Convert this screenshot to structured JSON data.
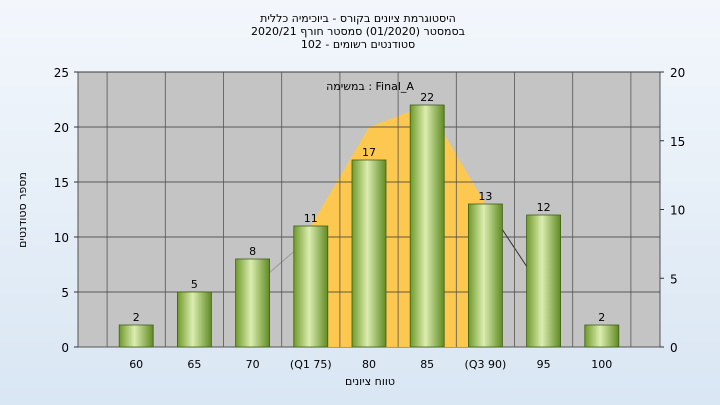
{
  "chart_data": {
    "type": "bar",
    "title": "היסטוגרמת ציונים בקורס - ביוכימיה כללית",
    "subtitle": "בסמסטר  (01/2020)  סמסטר חורף  2020/21",
    "subtitle2": "סטודנטים רשומים - 102",
    "annotation": "במשימה : Final_A",
    "xlabel": "טווח ציונים",
    "ylabel": "מספר סטודנטים",
    "categories": [
      "60",
      "65",
      "70",
      "(Q1 75)",
      "80",
      "85",
      "(Q3 90)",
      "95",
      "100"
    ],
    "values": [
      2,
      5,
      8,
      11,
      17,
      22,
      13,
      12,
      2
    ],
    "ylim": [
      0,
      25
    ],
    "yticks": [
      "0",
      "5",
      "10",
      "15",
      "20",
      "25"
    ],
    "y2lim": [
      0,
      20
    ],
    "y2ticks": [
      "0",
      "5",
      "10",
      "15",
      "20"
    ],
    "grid": true,
    "colors": {
      "bar_light": "#dcedb0",
      "bar_mid": "#9dc757",
      "bar_dark": "#5f8a22",
      "area": "#ffc84a",
      "plot_bg": "#c4c4c4"
    }
  }
}
